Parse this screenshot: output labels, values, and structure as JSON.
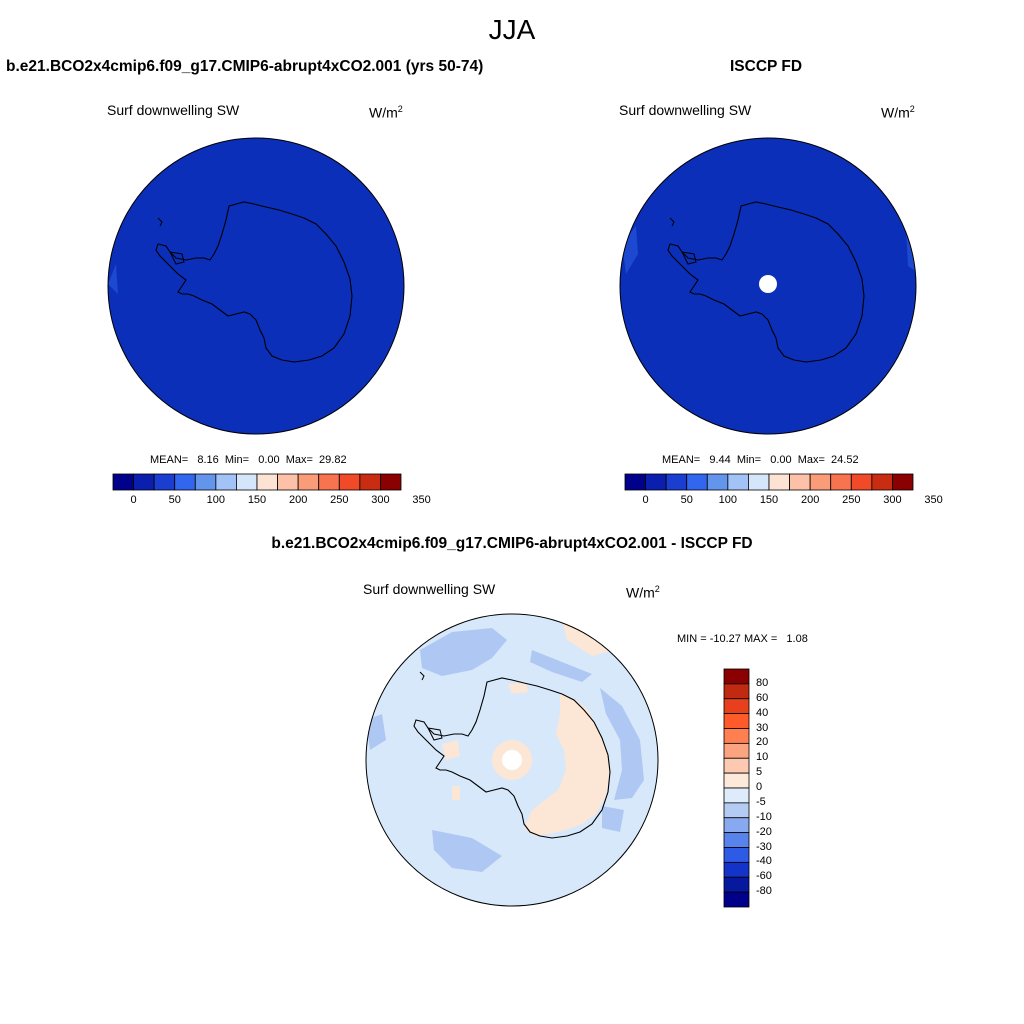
{
  "season": "JJA",
  "panels": [
    {
      "title": "b.e21.BCO2x4cmip6.f09_g17.CMIP6-abrupt4xCO2.001 (yrs 50-74)",
      "variable": "Surf downwelling SW",
      "units_base": "W/m",
      "units_exp": "2",
      "stats": "MEAN=   8.16  Min=   0.00  Max=  29.82"
    },
    {
      "title": "ISCCP FD",
      "variable": "Surf downwelling SW",
      "units_base": "W/m",
      "units_exp": "2",
      "stats": "MEAN=   9.44  Min=   0.00  Max=  24.52"
    },
    {
      "title": "b.e21.BCO2x4cmip6.f09_g17.CMIP6-abrupt4xCO2.001 - ISCCP FD",
      "variable": "Surf downwelling SW",
      "units_base": "W/m",
      "units_exp": "2",
      "stats": "MIN = -10.27 MAX =   1.08"
    }
  ],
  "horizontal_colorbar": {
    "ticks": [
      "0",
      "50",
      "100",
      "150",
      "200",
      "250",
      "300",
      "350"
    ],
    "colors": [
      "#00008B",
      "#0A1FAE",
      "#1A3FD0",
      "#3366EE",
      "#6495ED",
      "#A3C2F5",
      "#D6E6FA",
      "#FDE3D3",
      "#FCC1A6",
      "#FA9C78",
      "#F8744E",
      "#F04A28",
      "#C82D12",
      "#8B0000"
    ]
  },
  "vertical_colorbar": {
    "ticks": [
      "80",
      "60",
      "40",
      "30",
      "20",
      "10",
      "5",
      "0",
      "-5",
      "-10",
      "-20",
      "-30",
      "-40",
      "-60",
      "-80"
    ],
    "colors": [
      "#8B0000",
      "#C02A10",
      "#E8401C",
      "#FF5A2A",
      "#FF7F50",
      "#FCA480",
      "#FDC9B0",
      "#FDE9DA",
      "#DDEBFB",
      "#B4CCF3",
      "#88A9EF",
      "#5882EC",
      "#2E5BE6",
      "#1433C8",
      "#06199E",
      "#00008B"
    ]
  },
  "map_colors": {
    "full_field": "#0B2FB8",
    "full_field_edge": "#1C49CF",
    "diff_base": "#D7E8FA",
    "diff_negative": "#AFC8F3",
    "diff_positive": "#FCE6D6",
    "missing": "#FFFFFF"
  }
}
